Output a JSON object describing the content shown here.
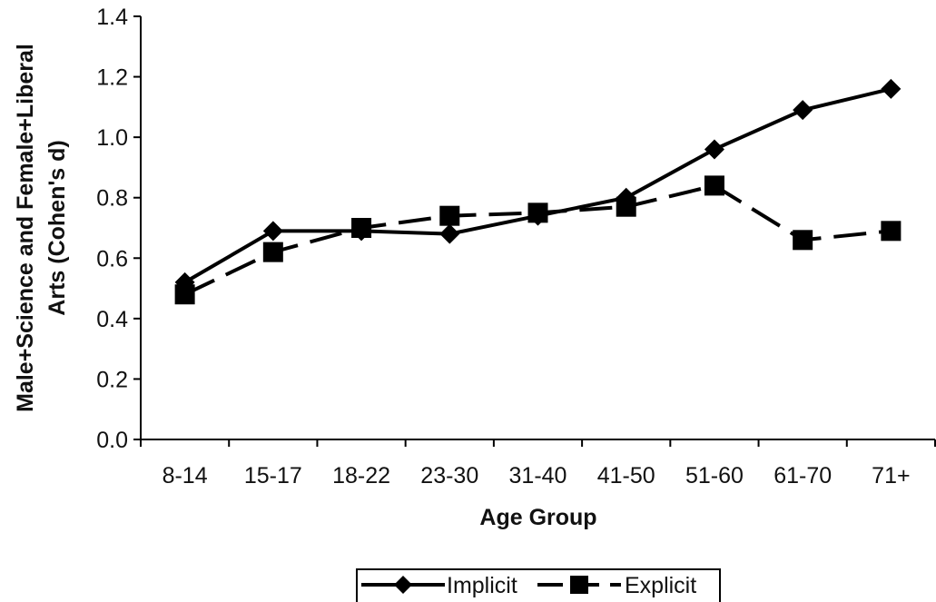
{
  "chart_data": {
    "type": "line",
    "categories": [
      "8-14",
      "15-17",
      "18-22",
      "23-30",
      "31-40",
      "41-50",
      "51-60",
      "61-70",
      "71+"
    ],
    "series": [
      {
        "name": "Implicit",
        "values": [
          0.52,
          0.69,
          0.69,
          0.68,
          0.74,
          0.8,
          0.96,
          1.09,
          1.16
        ],
        "marker": "diamond",
        "line_style": "solid",
        "color": "#000000"
      },
      {
        "name": "Explicit",
        "values": [
          0.48,
          0.62,
          0.7,
          0.74,
          0.75,
          0.77,
          0.84,
          0.66,
          0.69
        ],
        "marker": "square",
        "line_style": "dashed",
        "color": "#000000"
      }
    ],
    "xlabel": "Age Group",
    "ylabel_line1": "Male+Science and Female+Liberal",
    "ylabel_line2": "Arts (Cohen's d)",
    "ylim": [
      0,
      1.4
    ],
    "yticks": [
      "0.0",
      "0.2",
      "0.4",
      "0.6",
      "0.8",
      "1.0",
      "1.2",
      "1.4"
    ],
    "grid": false,
    "legend_position": "bottom"
  }
}
